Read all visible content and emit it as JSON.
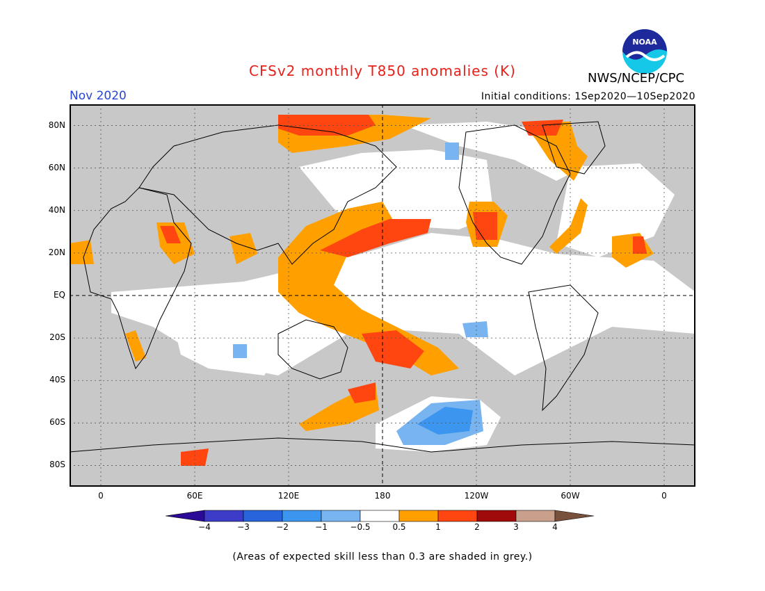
{
  "header": {
    "title": "CFSv2 monthly T850 anomalies (K)",
    "agency": "NWS/NCEP/CPC",
    "valid_month": "Nov 2020",
    "initial_conditions": "Initial conditions: 1Sep2020—10Sep2020",
    "logo_text": "NOAA"
  },
  "map": {
    "projection": "equirectangular",
    "lon_range": [
      -20,
      380
    ],
    "lat_range": [
      -90,
      90
    ],
    "lat_ticks": [
      {
        "lat": 80,
        "label": "80N"
      },
      {
        "lat": 60,
        "label": "60N"
      },
      {
        "lat": 40,
        "label": "40N"
      },
      {
        "lat": 20,
        "label": "20N"
      },
      {
        "lat": 0,
        "label": "EQ"
      },
      {
        "lat": -20,
        "label": "20S"
      },
      {
        "lat": -40,
        "label": "40S"
      },
      {
        "lat": -60,
        "label": "60S"
      },
      {
        "lat": -80,
        "label": "80S"
      }
    ],
    "lon_ticks": [
      {
        "lon": 0,
        "label": "0"
      },
      {
        "lon": 60,
        "label": "60E"
      },
      {
        "lon": 120,
        "label": "120E"
      },
      {
        "lon": 180,
        "label": "180"
      },
      {
        "lon": 240,
        "label": "120W"
      },
      {
        "lon": 300,
        "label": "60W"
      },
      {
        "lon": 360,
        "label": "0"
      }
    ],
    "reference_lines": [
      "equator",
      "dateline"
    ],
    "low_skill_color": "#c8c8c8"
  },
  "colorbar": {
    "colors": [
      "#2a0a96",
      "#3c3cc8",
      "#2864dc",
      "#3c96f0",
      "#78b4f0",
      "#ffffff",
      "#ffa000",
      "#ff4610",
      "#a00a0a",
      "#c8a08c",
      "#78503c"
    ],
    "tick_labels": [
      "−4",
      "−3",
      "−2",
      "−1",
      "−0.5",
      "0.5",
      "1",
      "2",
      "3",
      "4"
    ]
  },
  "footnote": "(Areas of expected skill less than 0.3 are shaded in grey.)"
}
